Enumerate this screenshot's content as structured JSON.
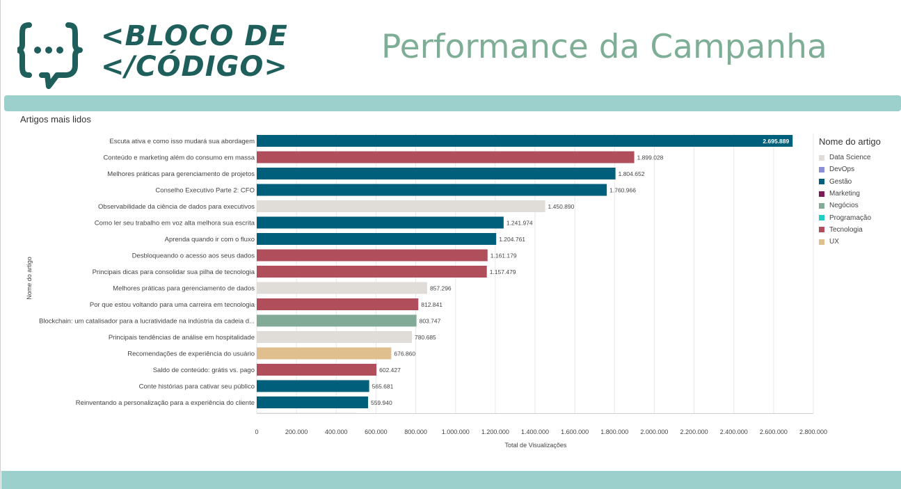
{
  "header": {
    "brand_line1": "<BLOCO DE",
    "brand_line2": "</CÓDIGO>",
    "title": "Performance da Campanha",
    "logo_icon": "speech-bubble-braces-icon"
  },
  "section": {
    "title": "Artigos mais lidos"
  },
  "colors": {
    "Data Science": "#e0dcd7",
    "DevOps": "#8c8fd1",
    "Gestão": "#00607b",
    "Marketing": "#7d1a56",
    "Negócios": "#82ab97",
    "Programação": "#1fcfc5",
    "Tecnologia": "#b04e5b",
    "UX": "#e0bf8e"
  },
  "chart_data": {
    "type": "bar",
    "orientation": "horizontal",
    "xlabel": "Total de Visualizações",
    "ylabel": "Nome do artigo",
    "xlim": [
      0,
      2800000
    ],
    "xticks": [
      0,
      200000,
      400000,
      600000,
      800000,
      1000000,
      1200000,
      1400000,
      1600000,
      1800000,
      2000000,
      2200000,
      2400000,
      2600000,
      2800000
    ],
    "xtick_labels": [
      "0",
      "200.000",
      "400.000",
      "600.000",
      "800.000",
      "1.000.000",
      "1.200.000",
      "1.400.000",
      "1.600.000",
      "1.800.000",
      "2.000.000",
      "2.200.000",
      "2.400.000",
      "2.600.000",
      "2.800.000"
    ],
    "grid": true,
    "legend": {
      "title": "Nome do artigo",
      "position": "right",
      "entries": [
        "Data Science",
        "DevOps",
        "Gestão",
        "Marketing",
        "Negócios",
        "Programação",
        "Tecnologia",
        "UX"
      ]
    },
    "bars": [
      {
        "label": "Escuta ativa e como isso mudará sua abordagem",
        "value": 2695889,
        "value_label": "2.695.889",
        "category": "Gestão"
      },
      {
        "label": "Conteúdo e marketing além do consumo em massa",
        "value": 1899028,
        "value_label": "1.899.028",
        "category": "Tecnologia"
      },
      {
        "label": "Melhores práticas para gerenciamento de projetos",
        "value": 1804652,
        "value_label": "1.804.652",
        "category": "Gestão"
      },
      {
        "label": "Conselho Executivo Parte 2: CFO",
        "value": 1760966,
        "value_label": "1.760.966",
        "category": "Gestão"
      },
      {
        "label": "Observabilidade da ciência de dados para executivos",
        "value": 1450890,
        "value_label": "1.450.890",
        "category": "Data Science"
      },
      {
        "label": "Como ler seu trabalho em voz alta melhora sua escrita",
        "value": 1241974,
        "value_label": "1.241.974",
        "category": "Gestão"
      },
      {
        "label": "Aprenda quando ir com o fluxo",
        "value": 1204761,
        "value_label": "1.204.761",
        "category": "Gestão"
      },
      {
        "label": "Desbloqueando o acesso aos seus dados",
        "value": 1161179,
        "value_label": "1.161.179",
        "category": "Tecnologia"
      },
      {
        "label": "Principais dicas para consolidar sua pilha de tecnologia",
        "value": 1157479,
        "value_label": "1.157.479",
        "category": "Tecnologia"
      },
      {
        "label": "Melhores práticas para gerenciamento de dados",
        "value": 857296,
        "value_label": "857.296",
        "category": "Data Science"
      },
      {
        "label": "Por que estou voltando para uma carreira em tecnologia",
        "value": 812841,
        "value_label": "812.841",
        "category": "Tecnologia"
      },
      {
        "label": "Blockchain: um catalisador para a lucratividade na indústria da cadeia d...",
        "value": 803747,
        "value_label": "803.747",
        "category": "Negócios"
      },
      {
        "label": "Principais tendências de análise em hospitalidade",
        "value": 780685,
        "value_label": "780.685",
        "category": "Data Science"
      },
      {
        "label": "Recomendações de experiência do usuário",
        "value": 676860,
        "value_label": "676.860",
        "category": "UX"
      },
      {
        "label": "Saldo de conteúdo: grátis vs. pago",
        "value": 602427,
        "value_label": "602.427",
        "category": "Tecnologia"
      },
      {
        "label": "Conte histórias para cativar seu público",
        "value": 565681,
        "value_label": "565.681",
        "category": "Gestão"
      },
      {
        "label": "Reinventando a personalização para a experiência do cliente",
        "value": 559940,
        "value_label": "559.940",
        "category": "Gestão"
      },
      {
        "label": "",
        "value": 500000,
        "value_label": "",
        "category": "Data Science"
      }
    ]
  }
}
